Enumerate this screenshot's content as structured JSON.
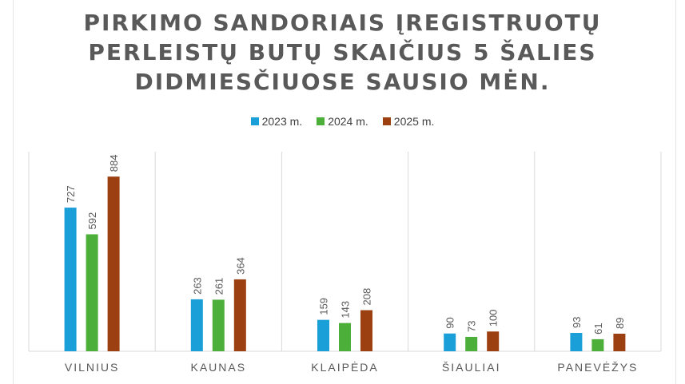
{
  "title_lines": [
    "PIRKIMO SANDORIAIS ĮREGISTRUOTŲ",
    "PERLEISTŲ BUTŲ SKAIČIUS 5 ŠALIES",
    "DIDMIESČIUOSE SAUSIO MĖN."
  ],
  "colors": {
    "series_2023": "#1a9fd9",
    "series_2024": "#4caf3a",
    "series_2025": "#9c3f11",
    "grid": "#d9d9d9",
    "text": "#595959"
  },
  "chart_data": {
    "type": "bar",
    "title": "PIRKIMO SANDORIAIS ĮREGISTRUOTŲ PERLEISTŲ BUTŲ SKAIČIUS 5 ŠALIES DIDMIESČIUOSE SAUSIO MĖN.",
    "categories": [
      "VILNIUS",
      "KAUNAS",
      "KLAIPĖDA",
      "ŠIAULIAI",
      "PANEVĖŽYS"
    ],
    "series": [
      {
        "name": "2023 m.",
        "values": [
          727,
          263,
          159,
          90,
          93
        ]
      },
      {
        "name": "2024 m.",
        "values": [
          592,
          261,
          143,
          73,
          61
        ]
      },
      {
        "name": "2025 m.",
        "values": [
          884,
          364,
          208,
          100,
          89
        ]
      }
    ],
    "xlabel": "",
    "ylabel": "",
    "ylim": [
      0,
      1000
    ],
    "legend": "top-center",
    "grid": "vertical-category-separators"
  }
}
